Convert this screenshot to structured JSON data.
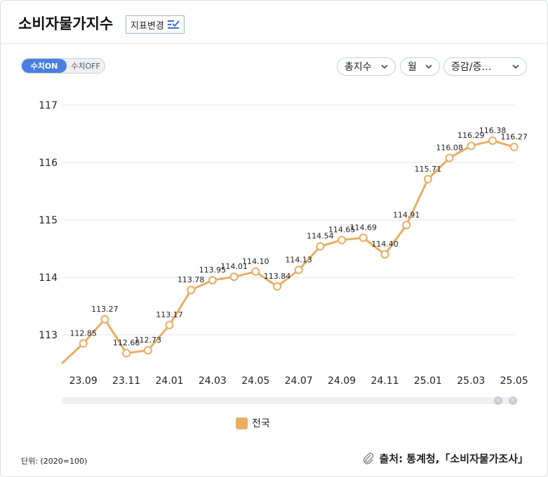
{
  "header": {
    "title": "소비자물가지수",
    "change_button_label": "지표변경"
  },
  "controls": {
    "toggle_on": "수치ON",
    "toggle_off": "수치OFF",
    "dropdowns": [
      "총지수",
      "월",
      "증감/증…"
    ]
  },
  "chart_data": {
    "type": "line",
    "x": [
      "23.08",
      "23.09",
      "23.10",
      "23.11",
      "23.12",
      "24.01",
      "24.02",
      "24.03",
      "24.04",
      "24.05",
      "24.06",
      "24.07",
      "24.08",
      "24.09",
      "24.10",
      "24.11",
      "24.12",
      "25.01",
      "25.02",
      "25.03",
      "25.04",
      "25.05"
    ],
    "x_tick_labels": [
      "23.09",
      "23.11",
      "24.01",
      "24.03",
      "24.05",
      "24.07",
      "24.09",
      "24.11",
      "25.01",
      "25.03",
      "25.05"
    ],
    "y_ticks": [
      "113",
      "114",
      "115",
      "116",
      "117"
    ],
    "ylim": [
      112.5,
      117.0
    ],
    "series": [
      {
        "name": "전국",
        "color": "#e8ad62",
        "values": [
          112.5,
          112.85,
          113.27,
          112.68,
          112.73,
          113.17,
          113.78,
          113.95,
          114.01,
          114.1,
          113.84,
          114.13,
          114.54,
          114.65,
          114.69,
          114.4,
          114.91,
          115.71,
          116.08,
          116.29,
          116.38,
          116.27
        ],
        "labels": [
          "",
          "112.85",
          "113.27",
          "112.68",
          "112.73",
          "113.17",
          "113.78",
          "113.95",
          "114.01",
          "114.10",
          "113.84",
          "114.13",
          "114.54",
          "114.65",
          "114.69",
          "114.40",
          "114.91",
          "115.71",
          "116.08",
          "116.29",
          "116.38",
          "116.27"
        ]
      }
    ]
  },
  "footer": {
    "unit": "단위: (2020=100)",
    "source": "출처: 통계청,「소비자물가조사」"
  }
}
